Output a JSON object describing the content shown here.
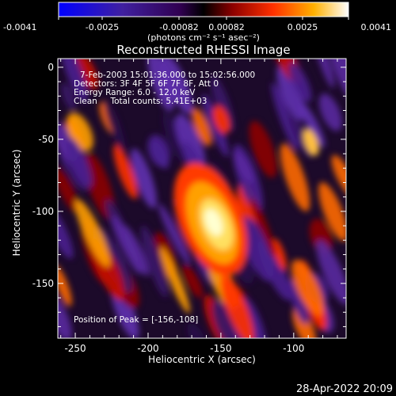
{
  "colorbar": {
    "ticks": [
      "-0.0041",
      "-0.0025",
      "-0.00082",
      "0.00082",
      "0.0025",
      "0.0041"
    ],
    "unit_label": "(photons cm⁻² s⁻¹ asec⁻²)"
  },
  "title": "Reconstructed RHESSI Image",
  "info": {
    "line1": "7-Feb-2003 15:01:36.000 to 15:02:56.000",
    "line2": "Detectors: 3F 4F 5F 6F 7F 8F, Att 0",
    "line3": "Energy Range: 6.0 - 12.0 keV",
    "line4": "Clean     Total counts: 5.41E+03"
  },
  "peak_label": "Position of Peak = [-156,-108]",
  "timestamp": "28-Apr-2022 20:09",
  "colors": {
    "background": "#000000",
    "foreground": "#ffffff"
  },
  "chart_data": {
    "type": "heatmap",
    "title": "Reconstructed RHESSI Image",
    "xlabel": "Heliocentric X (arcsec)",
    "ylabel": "Heliocentric Y (arcsec)",
    "xlim": [
      -262,
      -64
    ],
    "ylim": [
      -188,
      6
    ],
    "xticks": [
      -250,
      -200,
      -150,
      -100
    ],
    "yticks": [
      0,
      -50,
      -100,
      -150
    ],
    "colormap": "hot-blue (blue-purple negative, red-yellow-white positive)",
    "value_range": [
      -0.0041,
      0.0041
    ],
    "peak_position": [
      -156,
      -108
    ]
  }
}
